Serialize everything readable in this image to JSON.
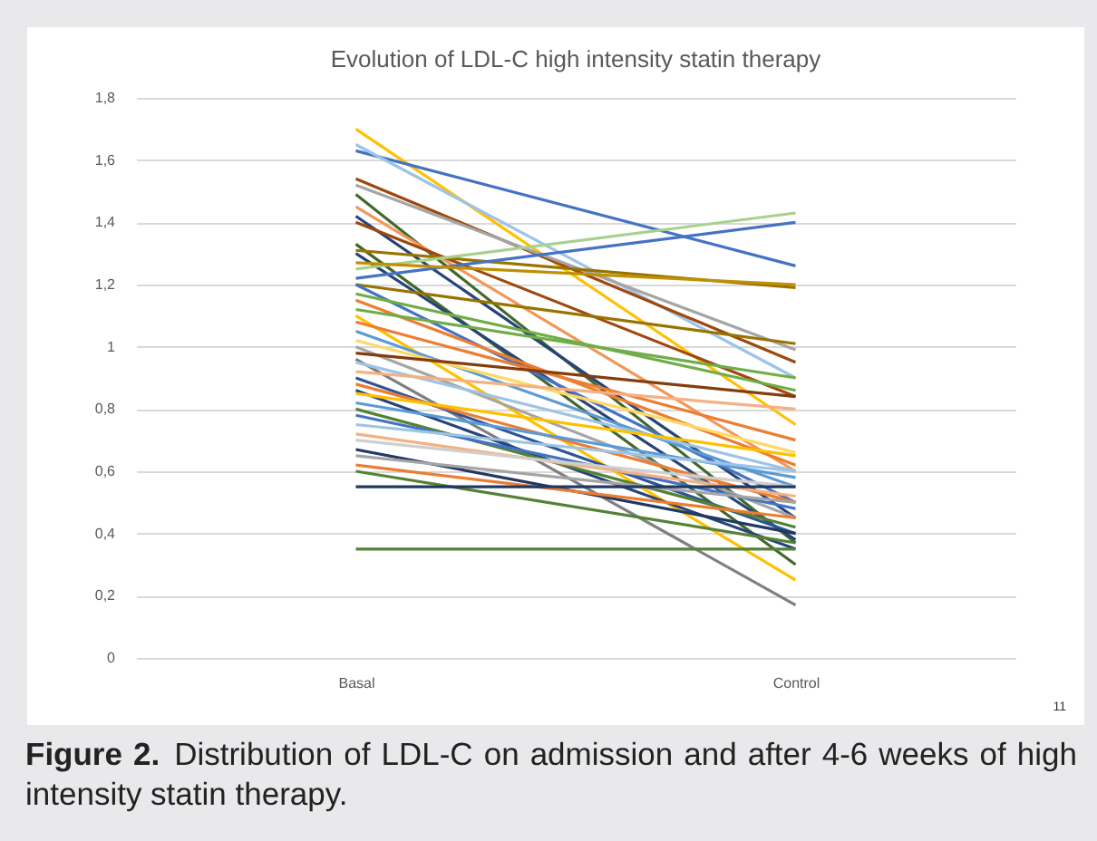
{
  "chart_data": {
    "type": "line",
    "title": "Evolution of LDL-C high intensity statin therapy",
    "categories": [
      "Basal",
      "Control"
    ],
    "ylim": [
      0,
      1.8
    ],
    "yticks": [
      0,
      {
        "value": 0.2,
        "label": "0,2"
      },
      {
        "value": 0.4,
        "label": "0,4"
      },
      {
        "value": 0.6,
        "label": "0,6"
      },
      {
        "value": 0.8,
        "label": "0,8"
      },
      1,
      {
        "value": 1.2,
        "label": "1,2"
      },
      {
        "value": 1.4,
        "label": "1,4"
      },
      {
        "value": 1.6,
        "label": "1,6"
      },
      {
        "value": 1.8,
        "label": "1,8"
      }
    ],
    "grid": "y",
    "legend": false,
    "marker": "none",
    "line_style": "solid",
    "annotations": [
      "Figure 2.",
      "Distribution of LDL-C on admission and after 4-6 weeks of high intensity statin therapy.",
      "11"
    ],
    "series": [
      {
        "color": "#ffc000",
        "values": [
          1.7,
          0.75
        ]
      },
      {
        "color": "#4472c4",
        "values": [
          1.63,
          1.26
        ]
      },
      {
        "color": "#9dc3e6",
        "values": [
          1.65,
          0.9
        ]
      },
      {
        "color": "#9e480e",
        "values": [
          1.54,
          0.95
        ]
      },
      {
        "color": "#a5a5a5",
        "values": [
          1.52,
          0.99
        ]
      },
      {
        "color": "#43682b",
        "values": [
          1.49,
          0.37
        ]
      },
      {
        "color": "#f1975a",
        "values": [
          1.45,
          0.6
        ]
      },
      {
        "color": "#264478",
        "values": [
          1.42,
          0.45
        ]
      },
      {
        "color": "#9e480e",
        "values": [
          1.4,
          0.84
        ]
      },
      {
        "color": "#43682b",
        "values": [
          1.33,
          0.3
        ]
      },
      {
        "color": "#997300",
        "values": [
          1.31,
          1.19
        ]
      },
      {
        "color": "#264478",
        "values": [
          1.3,
          0.38
        ]
      },
      {
        "color": "#a9d18e",
        "values": [
          1.25,
          1.43
        ]
      },
      {
        "color": "#4472c4",
        "values": [
          1.22,
          1.4
        ]
      },
      {
        "color": "#bf9000",
        "values": [
          1.27,
          1.2
        ]
      },
      {
        "color": "#997300",
        "values": [
          1.2,
          1.01
        ]
      },
      {
        "color": "#4472c4",
        "values": [
          1.2,
          0.5
        ]
      },
      {
        "color": "#70ad47",
        "values": [
          1.17,
          0.86
        ]
      },
      {
        "color": "#ed7d31",
        "values": [
          1.15,
          0.62
        ]
      },
      {
        "color": "#70ad47",
        "values": [
          1.12,
          0.9
        ]
      },
      {
        "color": "#ffc000",
        "values": [
          1.1,
          0.25
        ]
      },
      {
        "color": "#ed7d31",
        "values": [
          1.08,
          0.7
        ]
      },
      {
        "color": "#5b9bd5",
        "values": [
          1.05,
          0.55
        ]
      },
      {
        "color": "#ffd966",
        "values": [
          1.02,
          0.66
        ]
      },
      {
        "color": "#a5a5a5",
        "values": [
          1.0,
          0.45
        ]
      },
      {
        "color": "#843c0c",
        "values": [
          0.98,
          0.84
        ]
      },
      {
        "color": "#7f7f7f",
        "values": [
          0.96,
          0.17
        ]
      },
      {
        "color": "#9dc3e6",
        "values": [
          0.95,
          0.6
        ]
      },
      {
        "color": "#f4b183",
        "values": [
          0.92,
          0.8
        ]
      },
      {
        "color": "#2f5597",
        "values": [
          0.9,
          0.4
        ]
      },
      {
        "color": "#ed7d31",
        "values": [
          0.88,
          0.5
        ]
      },
      {
        "color": "#264478",
        "values": [
          0.86,
          0.35
        ]
      },
      {
        "color": "#ffc000",
        "values": [
          0.85,
          0.65
        ]
      },
      {
        "color": "#5b9bd5",
        "values": [
          0.82,
          0.58
        ]
      },
      {
        "color": "#548235",
        "values": [
          0.8,
          0.42
        ]
      },
      {
        "color": "#4472c4",
        "values": [
          0.78,
          0.48
        ]
      },
      {
        "color": "#9dc3e6",
        "values": [
          0.75,
          0.6
        ]
      },
      {
        "color": "#f4b183",
        "values": [
          0.72,
          0.52
        ]
      },
      {
        "color": "#d0cece",
        "values": [
          0.7,
          0.55
        ]
      },
      {
        "color": "#1f3864",
        "values": [
          0.67,
          0.4
        ]
      },
      {
        "color": "#a5a5a5",
        "values": [
          0.65,
          0.5
        ]
      },
      {
        "color": "#ed7d31",
        "values": [
          0.62,
          0.45
        ]
      },
      {
        "color": "#548235",
        "values": [
          0.6,
          0.37
        ]
      },
      {
        "color": "#1f3864",
        "values": [
          0.55,
          0.55
        ]
      },
      {
        "color": "#548235",
        "values": [
          0.35,
          0.35
        ]
      }
    ]
  }
}
